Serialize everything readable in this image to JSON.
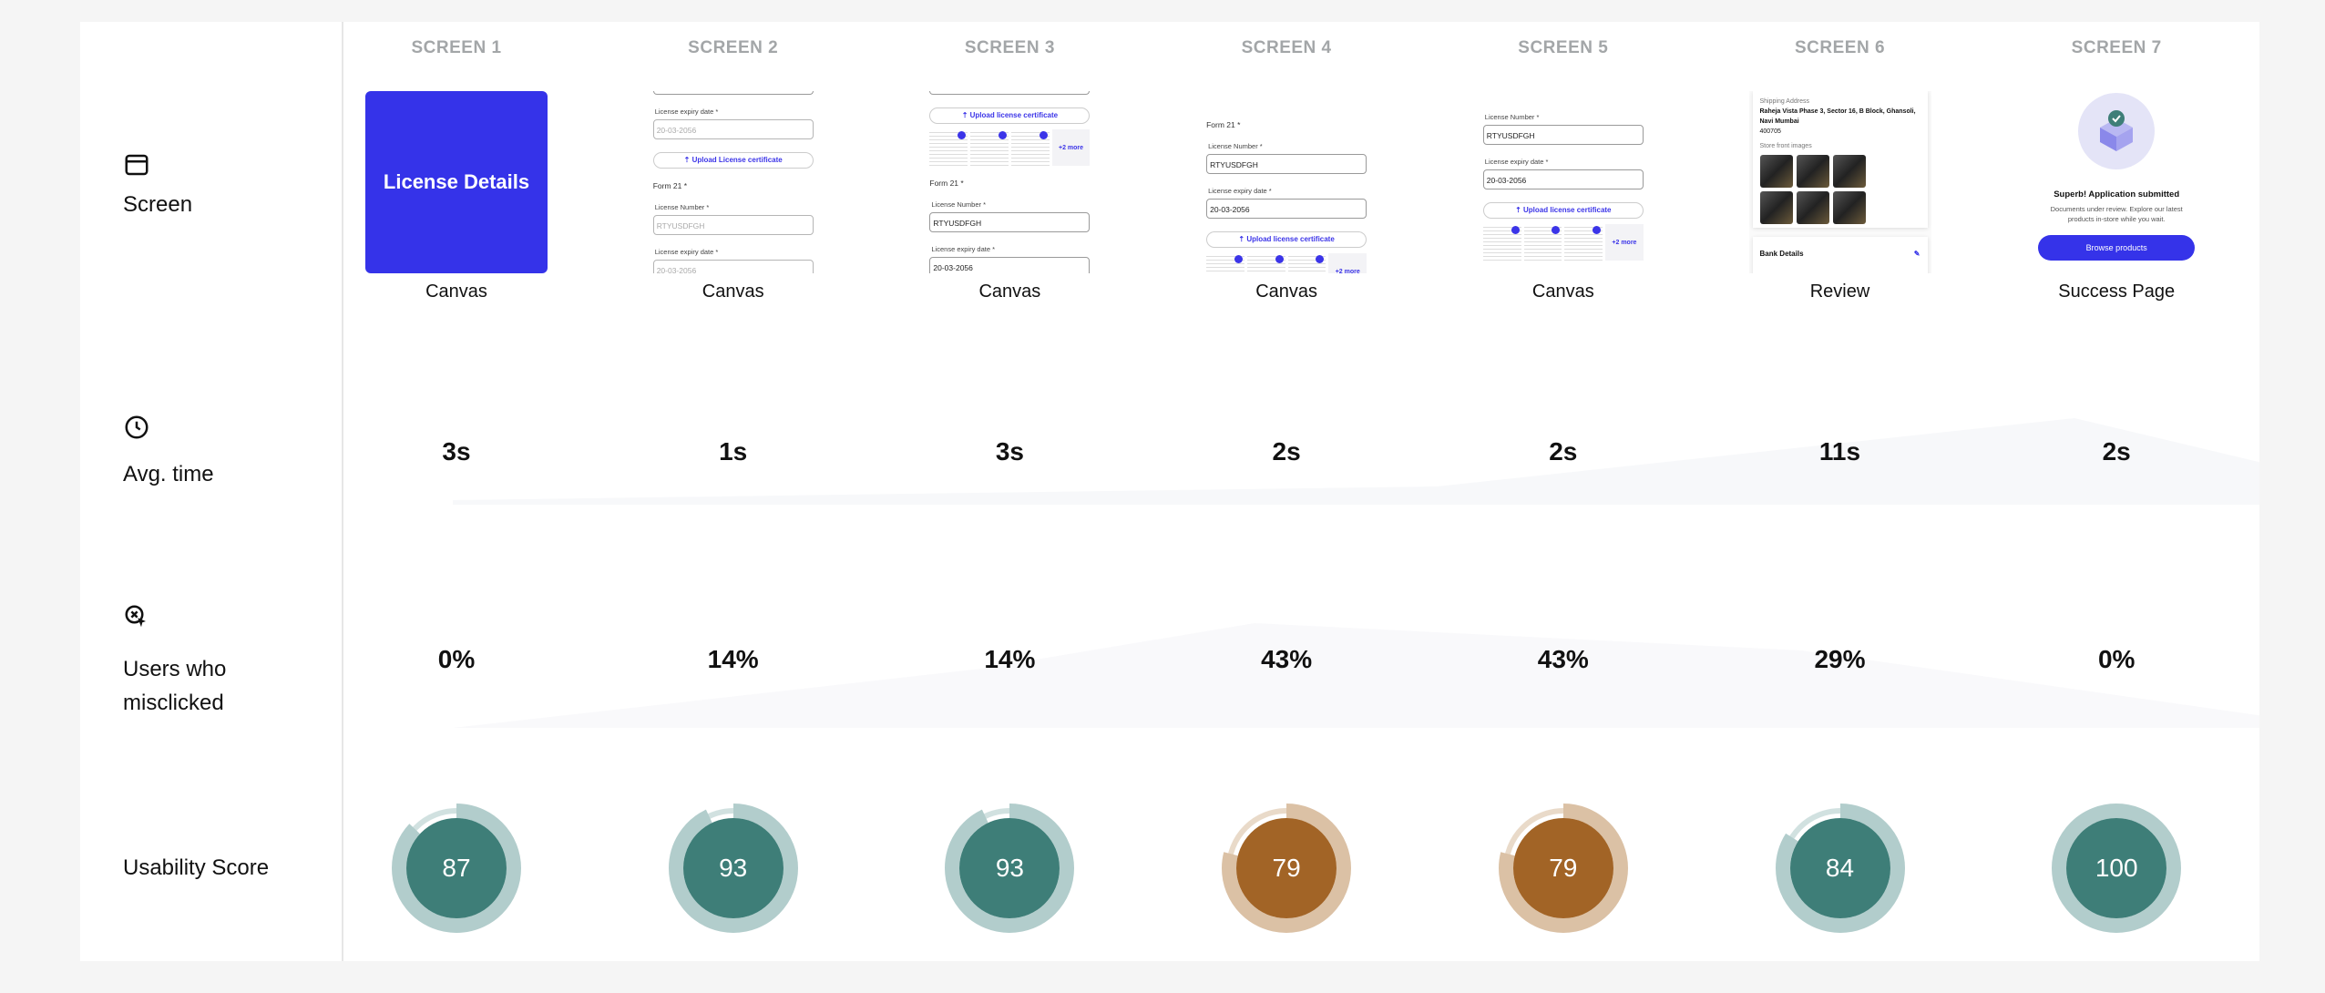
{
  "rows": {
    "screen": {
      "label": "Screen",
      "icon": "window-icon"
    },
    "avg_time": {
      "label": "Avg. time",
      "icon": "clock-icon"
    },
    "misclick": {
      "label_line1": "Users who",
      "label_line2": "misclicked",
      "icon": "misclick-cursor-icon"
    },
    "usability": {
      "label": "Usability Score"
    }
  },
  "colors": {
    "good": "#3e7e78",
    "good_ring": "#b2cdcc",
    "warn": "#a26426",
    "warn_ring": "#dbc1a5",
    "brand": "#3533e9"
  },
  "screens": [
    {
      "header": "SCREEN 1",
      "caption": "Canvas",
      "avg_time": "3s",
      "misclicked": "0%",
      "score": 87,
      "level": "good",
      "thumb": {
        "type": "title",
        "title": "License Details"
      }
    },
    {
      "header": "SCREEN 2",
      "caption": "Canvas",
      "avg_time": "1s",
      "misclicked": "14%",
      "score": 93,
      "level": "good",
      "thumb": {
        "type": "form",
        "blocks": [
          {
            "kind": "crop",
            "text": ""
          },
          {
            "kind": "label",
            "text": "License expiry date *"
          },
          {
            "kind": "placeholder",
            "text": "20-03-2056"
          },
          {
            "kind": "upload",
            "text": "⇡ Upload License certificate"
          },
          {
            "kind": "heading",
            "text": "Form 21 *"
          },
          {
            "kind": "label",
            "text": "License Number *"
          },
          {
            "kind": "placeholder",
            "text": "RTYUSDFGH"
          },
          {
            "kind": "label",
            "text": "License expiry date *"
          },
          {
            "kind": "placeholder",
            "text": "20-03-2056"
          }
        ]
      }
    },
    {
      "header": "SCREEN 3",
      "caption": "Canvas",
      "avg_time": "3s",
      "misclicked": "14%",
      "score": 93,
      "level": "good",
      "thumb": {
        "type": "form",
        "blocks": [
          {
            "kind": "crop",
            "text": "20-03-2056"
          },
          {
            "kind": "upload",
            "text": "⇡ Upload license certificate"
          },
          {
            "kind": "docs",
            "text": "+2 more"
          },
          {
            "kind": "heading",
            "text": "Form 21 *"
          },
          {
            "kind": "label",
            "text": "License Number *"
          },
          {
            "kind": "input",
            "text": "RTYUSDFGH"
          },
          {
            "kind": "label",
            "text": "License expiry date *"
          },
          {
            "kind": "input",
            "text": "20-03-2056"
          }
        ]
      }
    },
    {
      "header": "SCREEN 4",
      "caption": "Canvas",
      "avg_time": "2s",
      "misclicked": "43%",
      "score": 79,
      "level": "warn",
      "thumb": {
        "type": "form",
        "blocks": [
          {
            "kind": "heading",
            "text": "Form 21 *"
          },
          {
            "kind": "label",
            "text": "License Number *"
          },
          {
            "kind": "input",
            "text": "RTYUSDFGH"
          },
          {
            "kind": "label",
            "text": "License expiry date *"
          },
          {
            "kind": "input",
            "text": "20-03-2056"
          },
          {
            "kind": "upload",
            "text": "⇡ Upload license certificate"
          },
          {
            "kind": "docs",
            "text": "+2 more"
          }
        ]
      }
    },
    {
      "header": "SCREEN 5",
      "caption": "Canvas",
      "avg_time": "2s",
      "misclicked": "43%",
      "score": 79,
      "level": "warn",
      "thumb": {
        "type": "form",
        "blocks": [
          {
            "kind": "label",
            "text": "License Number *"
          },
          {
            "kind": "input",
            "text": "RTYUSDFGH"
          },
          {
            "kind": "label",
            "text": "License expiry date *"
          },
          {
            "kind": "input",
            "text": "20-03-2056"
          },
          {
            "kind": "upload",
            "text": "⇡ Upload license certificate"
          },
          {
            "kind": "docs",
            "text": "+2 more"
          }
        ]
      }
    },
    {
      "header": "SCREEN 6",
      "caption": "Review",
      "avg_time": "11s",
      "misclicked": "29%",
      "score": 84,
      "level": "good",
      "thumb": {
        "type": "review",
        "shipping_label": "Shipping Address",
        "address": "Raheja Vista Phase 3, Sector 16, B Block, Ghansoli, Navi Mumbai",
        "pincode": "400705",
        "images_label": "Store front images",
        "bank_label": "Bank Details",
        "edit_icon": "pencil-icon"
      }
    },
    {
      "header": "SCREEN 7",
      "caption": "Success Page",
      "avg_time": "2s",
      "misclicked": "0%",
      "score": 100,
      "level": "good",
      "thumb": {
        "type": "success",
        "title": "Superb! Application submitted",
        "desc": "Documents under review. Explore our latest products in-store while you wait.",
        "button": "Browse products",
        "icon": "box-check-icon"
      }
    }
  ]
}
